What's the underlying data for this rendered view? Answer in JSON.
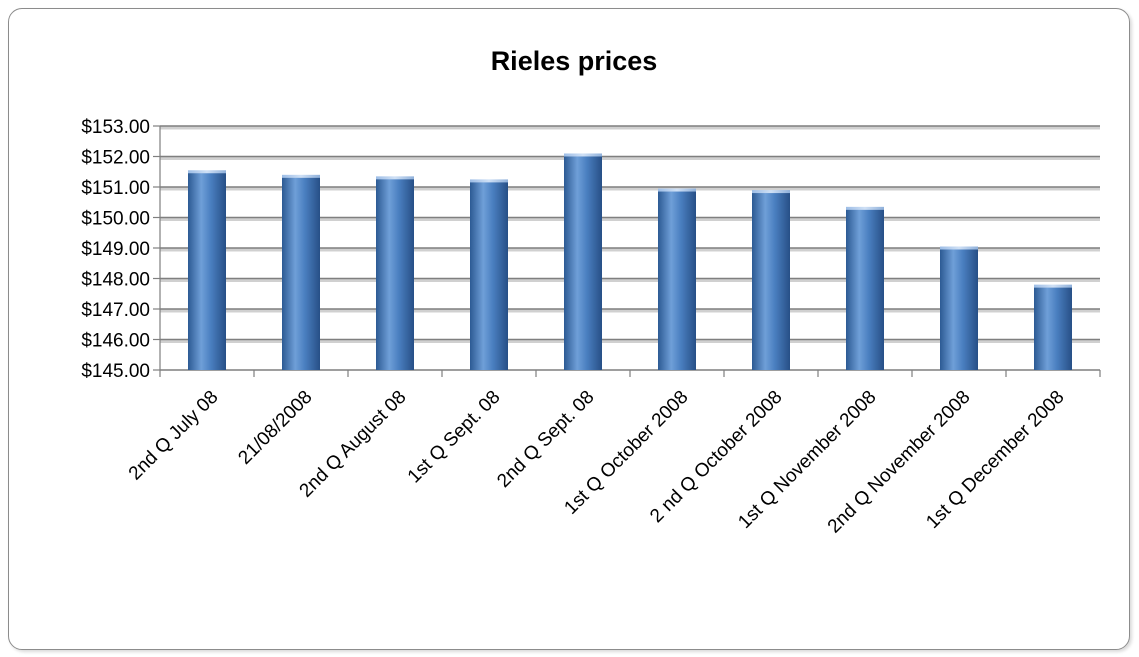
{
  "chart_data": {
    "type": "bar",
    "title": "Rieles prices",
    "categories": [
      "2nd Q July 08",
      "21/08/2008",
      "2nd Q August 08",
      "1st Q Sept. 08",
      "2nd Q Sept. 08",
      "1st Q October 2008",
      "2 nd Q October 2008",
      "1st Q November 2008",
      "2nd Q November 2008",
      "1st Q December 2008"
    ],
    "values": [
      151.5,
      151.35,
      151.3,
      151.2,
      152.05,
      150.9,
      150.85,
      150.3,
      149.0,
      147.75
    ],
    "ylim": [
      145,
      153
    ],
    "yticks": [
      145,
      146,
      147,
      148,
      149,
      150,
      151,
      152,
      153
    ],
    "ytick_labels": [
      "$145.00",
      "$146.00",
      "$147.00",
      "$148.00",
      "$149.00",
      "$150.00",
      "$151.00",
      "$152.00",
      "$153.00"
    ],
    "grid": true,
    "legend": "none",
    "bar_color": "#4f81bd"
  }
}
